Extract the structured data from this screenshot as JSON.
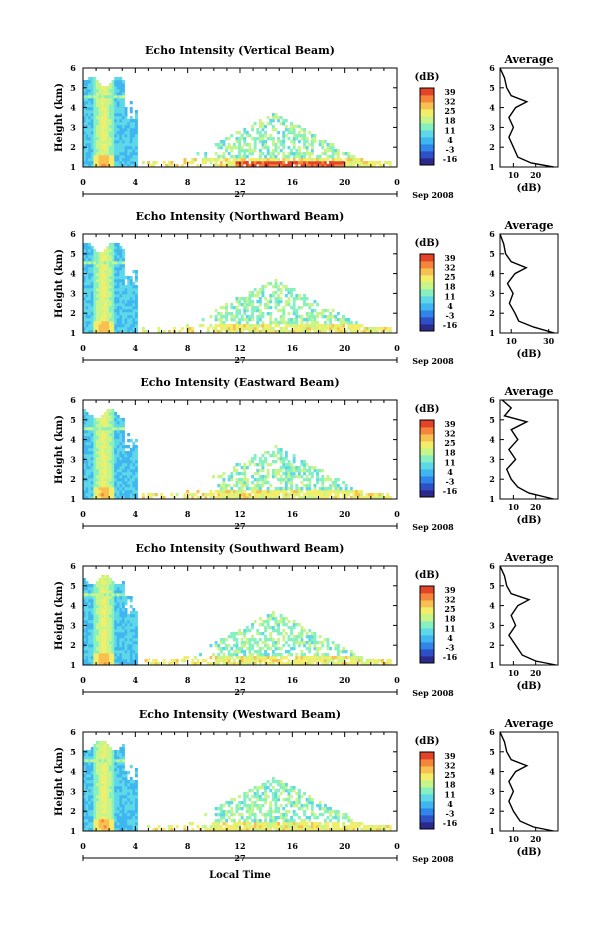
{
  "xlabel": "Local Time",
  "date_label": "Sep 2008",
  "day_label": "27",
  "colorbar_unit": "(dB)",
  "colorbar_ticks": [
    "-16",
    "-3",
    "4",
    "11",
    "18",
    "25",
    "32",
    "39"
  ],
  "colorbar_colors": [
    "#2b2a8a",
    "#2f4fc7",
    "#2f86e8",
    "#3fb6f0",
    "#5ed8e8",
    "#86f0c0",
    "#c8f58a",
    "#f2ee6a",
    "#f8c050",
    "#f5853a",
    "#e34427"
  ],
  "panels": [
    {
      "title": "Echo Intensity (Vertical Beam)"
    },
    {
      "title": "Echo Intensity (Northward Beam)"
    },
    {
      "title": "Echo Intensity (Eastward Beam)"
    },
    {
      "title": "Echo Intensity (Southward Beam)"
    },
    {
      "title": "Echo Intensity (Westward Beam)"
    }
  ],
  "profile_title": "Average",
  "profile_xlabel": "(dB)",
  "chart_data": [
    {
      "type": "heatmap",
      "title": "Echo Intensity (Vertical Beam)",
      "xlabel": "",
      "ylabel": "Height (km)",
      "xticks": [
        "0",
        "4",
        "8",
        "12",
        "16",
        "20",
        "0"
      ],
      "yticks": [
        "1",
        "2",
        "3",
        "4",
        "5",
        "6"
      ],
      "ylim": [
        1,
        6
      ],
      "zlim": [
        -16,
        39
      ],
      "profile": {
        "title": "Average",
        "xlabel": "(dB)",
        "xticks": [
          "10",
          "20"
        ],
        "xlim": [
          4,
          30
        ],
        "heights": [
          1.0,
          1.2,
          1.5,
          2.0,
          2.5,
          3.0,
          3.5,
          4.0,
          4.3,
          4.6,
          5.0,
          5.5,
          6.0
        ],
        "values": [
          28,
          18,
          12,
          10,
          8,
          10,
          8,
          11,
          16,
          9,
          7,
          6,
          4
        ]
      }
    },
    {
      "type": "heatmap",
      "title": "Echo Intensity (Northward Beam)",
      "xlabel": "",
      "ylabel": "Height (km)",
      "xticks": [
        "0",
        "4",
        "8",
        "12",
        "16",
        "20",
        "0"
      ],
      "yticks": [
        "1",
        "2",
        "3",
        "4",
        "5",
        "6"
      ],
      "ylim": [
        1,
        6
      ],
      "zlim": [
        -16,
        39
      ],
      "profile": {
        "title": "Average",
        "xlabel": "(dB)",
        "xticks": [
          "10",
          "30"
        ],
        "xlim": [
          4,
          35
        ],
        "heights": [
          1.0,
          1.3,
          1.6,
          2.0,
          2.5,
          3.0,
          3.5,
          4.0,
          4.3,
          4.6,
          5.0,
          5.5,
          6.0
        ],
        "values": [
          33,
          22,
          14,
          12,
          9,
          11,
          8,
          12,
          18,
          10,
          7,
          6,
          4
        ]
      }
    },
    {
      "type": "heatmap",
      "title": "Echo Intensity (Eastward Beam)",
      "xlabel": "",
      "ylabel": "Height (km)",
      "xticks": [
        "0",
        "4",
        "8",
        "12",
        "16",
        "20",
        "0"
      ],
      "yticks": [
        "1",
        "2",
        "3",
        "4",
        "5",
        "6"
      ],
      "ylim": [
        1,
        6
      ],
      "zlim": [
        -16,
        39
      ],
      "profile": {
        "title": "Average",
        "xlabel": "(dB)",
        "xticks": [
          "10",
          "20"
        ],
        "xlim": [
          4,
          30
        ],
        "heights": [
          1.0,
          1.3,
          1.6,
          2.0,
          2.5,
          3.0,
          3.5,
          4.0,
          4.5,
          4.9,
          5.2,
          5.6,
          6.0
        ],
        "values": [
          28,
          17,
          12,
          9,
          7,
          11,
          8,
          12,
          9,
          16,
          6,
          9,
          5
        ]
      }
    },
    {
      "type": "heatmap",
      "title": "Echo Intensity (Southward Beam)",
      "xlabel": "",
      "ylabel": "Height (km)",
      "xticks": [
        "0",
        "4",
        "8",
        "12",
        "16",
        "20",
        "0"
      ],
      "yticks": [
        "1",
        "2",
        "3",
        "4",
        "5",
        "6"
      ],
      "ylim": [
        1,
        6
      ],
      "zlim": [
        -16,
        39
      ],
      "profile": {
        "title": "Average",
        "xlabel": "(dB)",
        "xticks": [
          "10",
          "20"
        ],
        "xlim": [
          4,
          30
        ],
        "heights": [
          1.0,
          1.2,
          1.5,
          2.0,
          2.5,
          3.0,
          3.5,
          4.0,
          4.3,
          4.6,
          5.0,
          5.5,
          6.0
        ],
        "values": [
          29,
          20,
          14,
          11,
          8,
          11,
          9,
          12,
          17,
          9,
          7,
          6,
          4
        ]
      }
    },
    {
      "type": "heatmap",
      "title": "Echo Intensity (Westward Beam)",
      "xlabel": "Local Time",
      "ylabel": "Height (km)",
      "xticks": [
        "0",
        "4",
        "8",
        "12",
        "16",
        "20",
        "0"
      ],
      "yticks": [
        "1",
        "2",
        "3",
        "4",
        "5",
        "6"
      ],
      "ylim": [
        1,
        6
      ],
      "zlim": [
        -16,
        39
      ],
      "profile": {
        "title": "Average",
        "xlabel": "(dB)",
        "xticks": [
          "10",
          "20"
        ],
        "xlim": [
          4,
          30
        ],
        "heights": [
          1.0,
          1.2,
          1.5,
          2.0,
          2.5,
          3.0,
          3.5,
          4.0,
          4.3,
          4.6,
          5.0,
          5.5,
          6.0
        ],
        "values": [
          28,
          19,
          13,
          10,
          8,
          10,
          8,
          11,
          16,
          9,
          7,
          6,
          4
        ]
      }
    }
  ]
}
